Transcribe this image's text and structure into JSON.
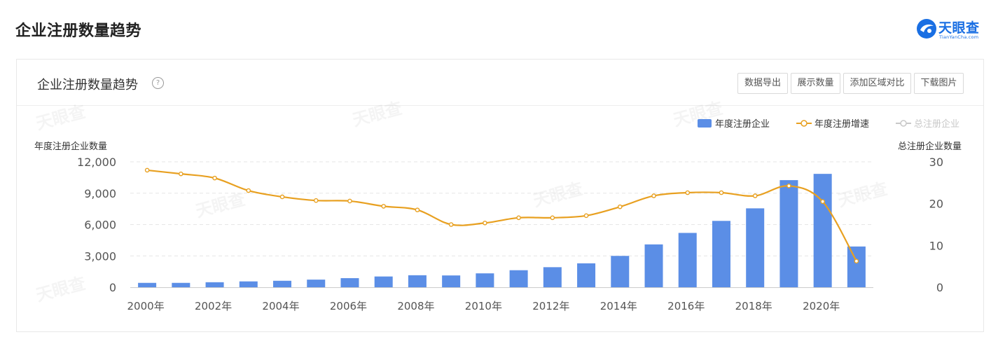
{
  "header": {
    "page_title": "企业注册数量趋势",
    "brand_name": "天眼查",
    "brand_sub": "TianYanCha.com"
  },
  "card": {
    "title": "企业注册数量趋势",
    "help_icon_glyph": "?",
    "buttons": {
      "export_label": "数据导出",
      "show_label": "展示数量",
      "compare_label": "添加区域对比",
      "download_label": "下载图片"
    }
  },
  "colors": {
    "bar": "#5b8ee6",
    "line": "#e8a020",
    "grid": "#e6e6e6",
    "axis_text": "#555555",
    "legend_inactive": "#c8c8c8"
  },
  "chart_data": {
    "type": "bar",
    "secondary_type": "line",
    "ylabel": "年度注册企业数量",
    "ylabel_right": "总注册企业数量",
    "ylim": [
      0,
      12000
    ],
    "ylim_right": [
      0,
      30
    ],
    "yticks": [
      "12,000",
      "9,000",
      "6,000",
      "3,000",
      "0"
    ],
    "yticks_right": [
      "30",
      "20",
      "10",
      "0"
    ],
    "categories": [
      "2000年",
      "2001年",
      "2002年",
      "2003年",
      "2004年",
      "2005年",
      "2006年",
      "2007年",
      "2008年",
      "2009年",
      "2010年",
      "2011年",
      "2012年",
      "2013年",
      "2014年",
      "2015年",
      "2016年",
      "2017年",
      "2018年",
      "2019年",
      "2020年",
      "2021年"
    ],
    "x_tick_labels": [
      "2000年",
      "2002年",
      "2004年",
      "2006年",
      "2008年",
      "2010年",
      "2012年",
      "2014年",
      "2016年",
      "2018年",
      "2020年"
    ],
    "legend": {
      "bar": "年度注册企业",
      "line": "年度注册增速",
      "total": "总注册企业"
    },
    "legend_position": "top-right",
    "grid": true,
    "series": [
      {
        "name": "年度注册企业",
        "type": "bar",
        "values": [
          420,
          420,
          480,
          560,
          620,
          730,
          870,
          1030,
          1150,
          1130,
          1330,
          1630,
          1920,
          2290,
          3000,
          4100,
          5200,
          6350,
          7550,
          10250,
          10850,
          3900
        ]
      },
      {
        "name": "年度注册增速",
        "type": "line",
        "values": [
          11200,
          10850,
          10450,
          9250,
          8650,
          8300,
          8250,
          7750,
          7400,
          6000,
          6150,
          6650,
          6650,
          6850,
          7700,
          8750,
          9050,
          9050,
          8750,
          9700,
          8200,
          2500
        ]
      }
    ]
  }
}
